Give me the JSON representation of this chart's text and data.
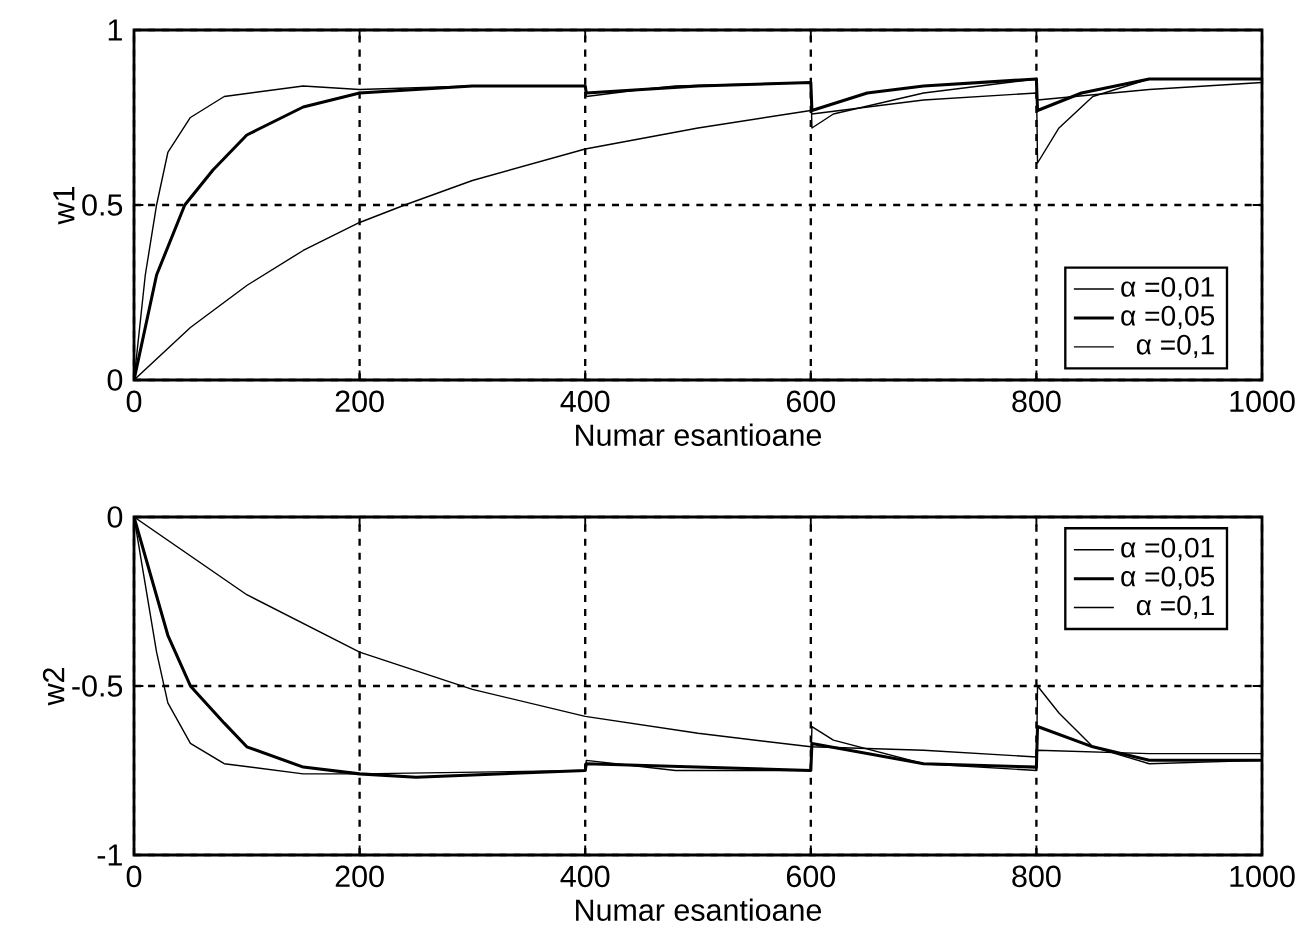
{
  "chart_data": [
    {
      "type": "line",
      "xlabel": "Numar esantioane",
      "ylabel": "w1",
      "xlim": [
        0,
        1000
      ],
      "ylim": [
        0,
        1
      ],
      "xticks": [
        0,
        200,
        400,
        600,
        800,
        1000
      ],
      "yticks": [
        0,
        0.5,
        1
      ],
      "grid": true,
      "legend": "bottom right",
      "line_style": "solid",
      "series": [
        {
          "name": "α =0,01",
          "color": "#000000",
          "x": [
            0,
            50,
            100,
            150,
            200,
            240,
            300,
            400,
            500,
            600,
            601,
            700,
            800,
            801,
            900,
            1000
          ],
          "values": [
            0,
            0.15,
            0.27,
            0.37,
            0.45,
            0.5,
            0.57,
            0.66,
            0.72,
            0.77,
            0.76,
            0.8,
            0.82,
            0.8,
            0.83,
            0.85
          ]
        },
        {
          "name": "α =0,05",
          "color": "#000000",
          "x": [
            0,
            20,
            45,
            70,
            100,
            150,
            200,
            300,
            400,
            401,
            500,
            600,
            601,
            650,
            700,
            800,
            801,
            840,
            900,
            1000
          ],
          "values": [
            0,
            0.3,
            0.5,
            0.6,
            0.7,
            0.78,
            0.82,
            0.84,
            0.84,
            0.82,
            0.84,
            0.85,
            0.77,
            0.82,
            0.84,
            0.86,
            0.77,
            0.82,
            0.86,
            0.86
          ]
        },
        {
          "name": "α =0,1",
          "color": "#000000",
          "x": [
            0,
            10,
            20,
            30,
            50,
            80,
            150,
            200,
            300,
            400,
            401,
            450,
            480,
            600,
            601,
            620,
            700,
            800,
            801,
            820,
            850,
            900,
            1000
          ],
          "values": [
            0,
            0.3,
            0.5,
            0.65,
            0.75,
            0.81,
            0.84,
            0.83,
            0.84,
            0.84,
            0.81,
            0.83,
            0.84,
            0.85,
            0.72,
            0.76,
            0.82,
            0.86,
            0.62,
            0.72,
            0.81,
            0.86,
            0.86
          ]
        }
      ]
    },
    {
      "type": "line",
      "xlabel": "Numar esantioane",
      "ylabel": "w2",
      "xlim": [
        0,
        1000
      ],
      "ylim": [
        -1,
        0
      ],
      "xticks": [
        0,
        200,
        400,
        600,
        800,
        1000
      ],
      "yticks": [
        -1,
        -0.5,
        0
      ],
      "grid": true,
      "legend": "top right",
      "line_style": "solid",
      "series": [
        {
          "name": "α =0,01",
          "color": "#000000",
          "x": [
            0,
            100,
            200,
            300,
            400,
            500,
            600,
            700,
            800,
            801,
            900,
            1000
          ],
          "values": [
            0,
            -0.23,
            -0.4,
            -0.51,
            -0.59,
            -0.64,
            -0.68,
            -0.69,
            -0.71,
            -0.69,
            -0.7,
            -0.7
          ]
        },
        {
          "name": "α =0,05",
          "color": "#000000",
          "x": [
            0,
            30,
            50,
            80,
            100,
            150,
            200,
            250,
            400,
            401,
            600,
            601,
            700,
            800,
            801,
            850,
            900,
            1000
          ],
          "values": [
            0,
            -0.35,
            -0.5,
            -0.61,
            -0.68,
            -0.74,
            -0.76,
            -0.77,
            -0.75,
            -0.73,
            -0.75,
            -0.67,
            -0.73,
            -0.74,
            -0.62,
            -0.68,
            -0.72,
            -0.72
          ]
        },
        {
          "name": "α =0,1",
          "color": "#000000",
          "x": [
            0,
            20,
            30,
            50,
            80,
            150,
            200,
            400,
            401,
            480,
            600,
            601,
            620,
            700,
            800,
            801,
            820,
            850,
            900,
            1000
          ],
          "values": [
            0,
            -0.4,
            -0.55,
            -0.67,
            -0.73,
            -0.76,
            -0.76,
            -0.75,
            -0.72,
            -0.75,
            -0.75,
            -0.62,
            -0.66,
            -0.73,
            -0.75,
            -0.5,
            -0.58,
            -0.68,
            -0.73,
            -0.72
          ]
        }
      ]
    }
  ]
}
